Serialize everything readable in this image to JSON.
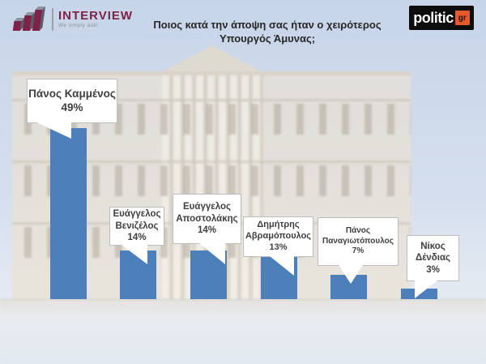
{
  "branding": {
    "interview": {
      "name": "INTERVIEW",
      "tagline": "We simply ask!"
    },
    "politic": {
      "name": "politic",
      "tld": "gr"
    }
  },
  "title": {
    "line1": "Ποιος κατά την άποψη σας ήταν ο χειρότερος",
    "line2": "Υπουργός Άμυνας;"
  },
  "chart_data": {
    "type": "bar",
    "title": "Ποιος κατά την άποψη σας ήταν ο χειρότερος Υπουργός Άμυνας;",
    "unit": "%",
    "bar_color": "#4d80ba",
    "ylim": [
      0,
      55
    ],
    "grid": false,
    "legend": "none",
    "xlabel": "",
    "ylabel": "",
    "categories": [
      "Πάνος Καμμένος",
      "Ευάγγελος Βενιζέλος",
      "Ευάγγελος Αποστολάκης",
      "Δημήτρης Αβραμόπουλος",
      "Πάνος Παναγιωτόπουλος",
      "Νίκος Δένδιας"
    ],
    "values": [
      49,
      14,
      14,
      13,
      7,
      3
    ],
    "points": [
      {
        "label_lines": [
          "Πάνος Καμμένος"
        ],
        "value": 49,
        "value_label": "49%"
      },
      {
        "label_lines": [
          "Ευάγγελος",
          "Βενιζέλος"
        ],
        "value": 14,
        "value_label": "14%"
      },
      {
        "label_lines": [
          "Ευάγγελος",
          "Αποστολάκης"
        ],
        "value": 14,
        "value_label": "14%"
      },
      {
        "label_lines": [
          "Δημήτρης",
          "Αβραμόπουλος"
        ],
        "value": 13,
        "value_label": "13%"
      },
      {
        "label_lines": [
          "Πάνος",
          "Παναγιωτόπουλος"
        ],
        "value": 7,
        "value_label": "7%"
      },
      {
        "label_lines": [
          "Νίκος",
          "Δένδιας"
        ],
        "value": 3,
        "value_label": "3%"
      }
    ]
  }
}
